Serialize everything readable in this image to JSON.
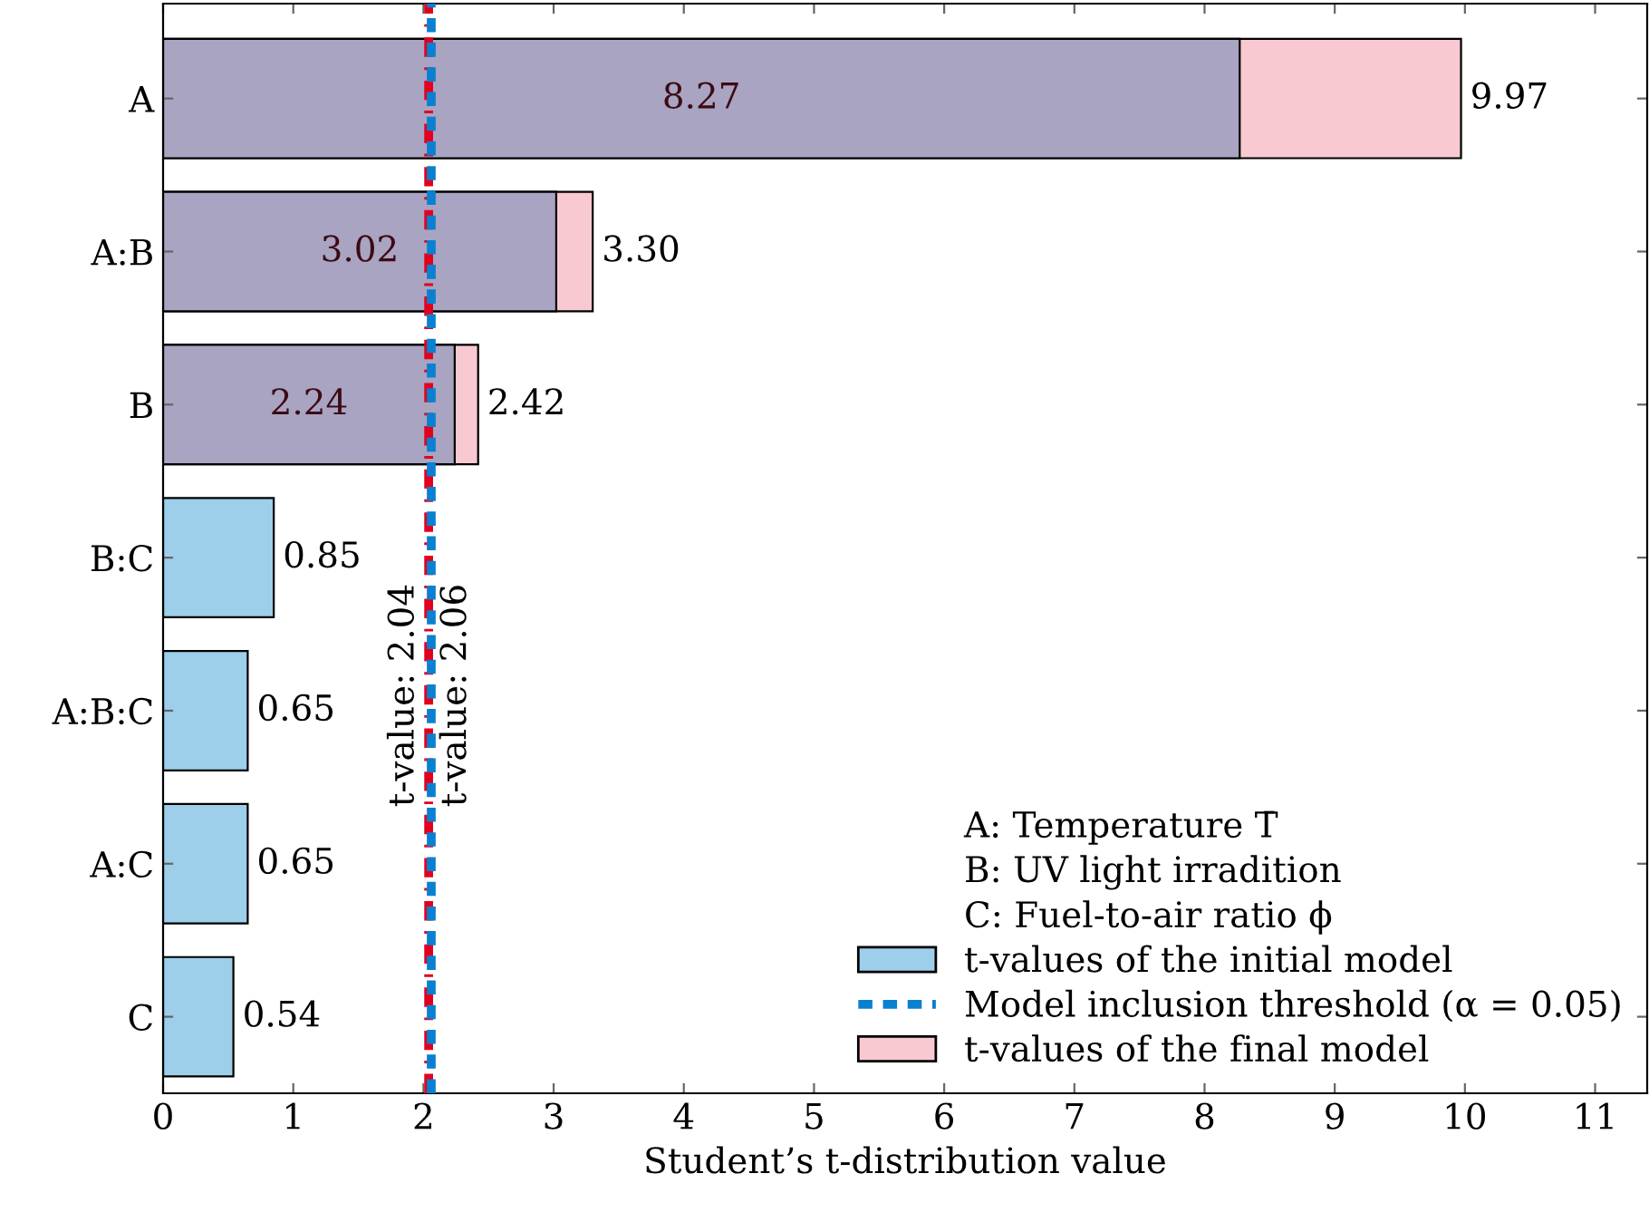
{
  "chart_data": {
    "type": "bar",
    "orientation": "horizontal",
    "xlabel": "Student’s t-distribution value",
    "categories": [
      "A",
      "A:B",
      "B",
      "B:C",
      "A:B:C",
      "A:C",
      "C"
    ],
    "series": [
      {
        "name": "t-values of the final model",
        "color": "#f9c9d1",
        "values": [
          9.97,
          3.3,
          2.42,
          null,
          null,
          null,
          null
        ],
        "value_labels": [
          "9.97",
          "3.30",
          "2.42",
          null,
          null,
          null,
          null
        ]
      },
      {
        "name": "t-values of the initial model",
        "color": "#9dcfea",
        "colors": [
          "#a8a4c2",
          "#a8a4c2",
          "#a8a4c2",
          "#9dcfea",
          "#9dcfea",
          "#9dcfea",
          "#9dcfea"
        ],
        "values": [
          8.27,
          3.02,
          2.24,
          0.85,
          0.65,
          0.65,
          0.54
        ],
        "value_labels": [
          "8.27",
          "3.02",
          "2.24",
          "0.85",
          "0.65",
          "0.65",
          "0.54"
        ]
      }
    ],
    "xlim": [
      0,
      11.4
    ],
    "xticks": [
      0,
      1,
      2,
      3,
      4,
      5,
      6,
      7,
      8,
      9,
      10,
      11
    ],
    "ref_lines": [
      {
        "axis": "x",
        "value": 2.04,
        "label": "t-value: 2.04",
        "color": "#e3001f",
        "line_style": "dashed"
      },
      {
        "axis": "x",
        "value": 2.06,
        "label": "t-value: 2.06",
        "color": "#0a80d0",
        "line_style": "dotted"
      }
    ],
    "annotations": [
      "A: Temperature T̄",
      "B: UV light irradition",
      "C: Fuel-to-air ratio ϕ",
      "Model inclusion threshold (α = 0.05)"
    ],
    "legend": "bottom right",
    "grid": false
  }
}
